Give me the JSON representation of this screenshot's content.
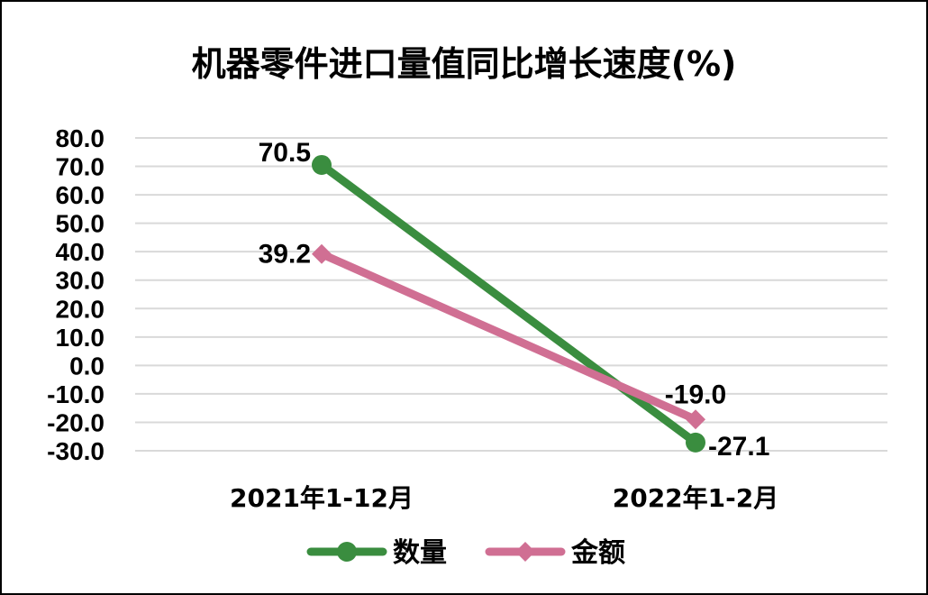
{
  "chart_data": {
    "type": "line",
    "title": "机器零件进口量值同比增长速度(%)",
    "categories": [
      "2021年1-12月",
      "2022年1-2月"
    ],
    "ylim": [
      -30,
      80
    ],
    "yticks": [
      80,
      70,
      60,
      50,
      40,
      30,
      20,
      10,
      0,
      -10,
      -20,
      -30
    ],
    "ytick_labels": [
      "80.0",
      "70.0",
      "60.0",
      "50.0",
      "40.0",
      "30.0",
      "20.0",
      "10.0",
      "0.0",
      "-10.0",
      "-20.0",
      "-30.0"
    ],
    "grid": true,
    "legend": "bottom",
    "series": [
      {
        "name": "数量",
        "values": [
          70.5,
          -27.1
        ],
        "labels": [
          "70.5",
          "-27.1"
        ],
        "color": "#3a8d3f",
        "marker": "circle"
      },
      {
        "name": "金额",
        "values": [
          39.2,
          -19.0
        ],
        "labels": [
          "39.2",
          "-19.0"
        ],
        "color": "#d06f93",
        "marker": "diamond"
      }
    ]
  }
}
